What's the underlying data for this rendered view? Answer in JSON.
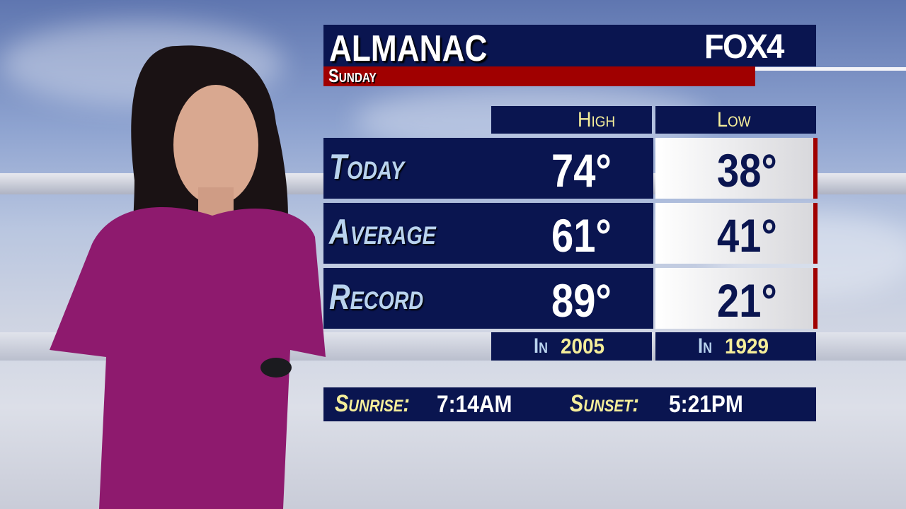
{
  "header": {
    "title": "ALMANAC",
    "day": "Sunday",
    "logo": "FOX4"
  },
  "columns": {
    "high": "High",
    "low": "Low"
  },
  "rows": [
    {
      "label": "Today",
      "high": "74°",
      "low": "38°"
    },
    {
      "label": "Average",
      "high": "61°",
      "low": "41°"
    },
    {
      "label": "Record",
      "high": "89°",
      "low": "21°"
    }
  ],
  "record_years": {
    "prefix": "In",
    "high_year": "2005",
    "low_year": "1929"
  },
  "sun": {
    "sunrise_label": "Sunrise:",
    "sunrise": "7:14AM",
    "sunset_label": "Sunset:",
    "sunset": "5:21PM"
  },
  "colors": {
    "navy": "#0a1550",
    "red": "#a00000",
    "yellow": "#f5ee9a",
    "light_blue": "#b9d3ee",
    "dress": "#8e1a6e"
  }
}
